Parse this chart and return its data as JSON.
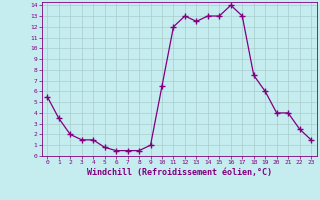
{
  "xlabel": "Windchill (Refroidissement éolien,°C)",
  "x": [
    0,
    1,
    2,
    3,
    4,
    5,
    6,
    7,
    8,
    9,
    10,
    11,
    12,
    13,
    14,
    15,
    16,
    17,
    18,
    19,
    20,
    21,
    22,
    23
  ],
  "y": [
    5.5,
    3.5,
    2.0,
    1.5,
    1.5,
    0.8,
    0.5,
    0.5,
    0.5,
    1.0,
    6.5,
    12.0,
    13.0,
    12.5,
    13.0,
    13.0,
    14.0,
    13.0,
    7.5,
    6.0,
    4.0,
    4.0,
    2.5,
    1.5
  ],
  "line_color": "#800080",
  "marker": "+",
  "marker_size": 4,
  "linewidth": 0.9,
  "ylim": [
    0,
    14
  ],
  "xlim": [
    -0.5,
    23.5
  ],
  "yticks": [
    0,
    1,
    2,
    3,
    4,
    5,
    6,
    7,
    8,
    9,
    10,
    11,
    12,
    13,
    14
  ],
  "xticks": [
    0,
    1,
    2,
    3,
    4,
    5,
    6,
    7,
    8,
    9,
    10,
    11,
    12,
    13,
    14,
    15,
    16,
    17,
    18,
    19,
    20,
    21,
    22,
    23
  ],
  "bg_color": "#c5ecee",
  "grid_color": "#aacccc",
  "tick_fontsize": 4.5,
  "xlabel_fontsize": 6.0,
  "label_color": "#800080"
}
